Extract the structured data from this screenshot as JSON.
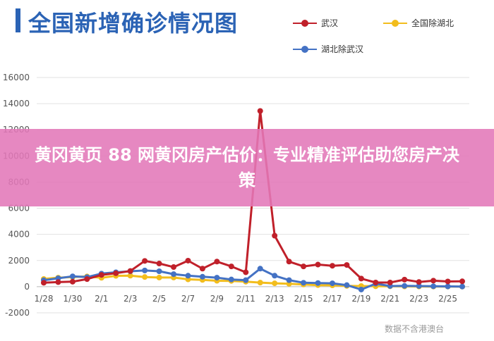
{
  "header": {
    "title": "全国新增确诊情况图"
  },
  "legend": [
    {
      "name": "武汉",
      "color": "#c0202a"
    },
    {
      "name": "全国除湖北",
      "color": "#f2bd1d"
    },
    {
      "name": "湖北除武汉",
      "color": "#4472c4"
    }
  ],
  "banner": {
    "text": "黄冈黄页 88 网黄冈房产估价：专业精准评估助您房产决策"
  },
  "source": "数据不含港澳台",
  "chart_data": {
    "type": "line",
    "title": "全国新增确诊情况图",
    "xlabel": "",
    "ylabel": "",
    "ylim": [
      -2000,
      16000
    ],
    "yticks": [
      -2000,
      0,
      2000,
      4000,
      6000,
      8000,
      10000,
      12000,
      14000,
      16000
    ],
    "x": [
      "1/28",
      "1/29",
      "1/30",
      "1/31",
      "2/1",
      "2/2",
      "2/3",
      "2/4",
      "2/5",
      "2/6",
      "2/7",
      "2/8",
      "2/9",
      "2/10",
      "2/11",
      "2/12",
      "2/13",
      "2/14",
      "2/15",
      "2/16",
      "2/17",
      "2/18",
      "2/19",
      "2/20",
      "2/21",
      "2/22",
      "2/23",
      "2/24",
      "2/25",
      "2/26"
    ],
    "xtick_labels": [
      "1/28",
      "1/30",
      "2/1",
      "2/3",
      "2/5",
      "2/7",
      "2/9",
      "2/11",
      "2/13",
      "2/15",
      "2/17",
      "2/19",
      "2/21",
      "2/23",
      "2/25"
    ],
    "grid": true,
    "legend_position": "top-right",
    "series": [
      {
        "name": "武汉",
        "color": "#c0202a",
        "values": [
          300,
          350,
          380,
          580,
          900,
          1030,
          1200,
          1970,
          1770,
          1500,
          1990,
          1380,
          1920,
          1550,
          1100,
          13440,
          3900,
          1920,
          1550,
          1690,
          1600,
          1660,
          620,
          320,
          320,
          540,
          360,
          460,
          400,
          410
        ]
      },
      {
        "name": "全国除湖北",
        "color": "#f2bd1d",
        "values": [
          590,
          690,
          740,
          780,
          680,
          830,
          840,
          740,
          700,
          700,
          560,
          520,
          450,
          440,
          380,
          310,
          260,
          220,
          170,
          120,
          100,
          60,
          50,
          30,
          30,
          20,
          15,
          10,
          10,
          5
        ]
      },
      {
        "name": "湖北除武汉",
        "color": "#4472c4",
        "values": [
          490,
          640,
          790,
          730,
          1000,
          1100,
          1180,
          1240,
          1180,
          960,
          840,
          760,
          690,
          550,
          500,
          1380,
          840,
          500,
          300,
          280,
          260,
          120,
          -220,
          230,
          50,
          60,
          50,
          30,
          20,
          10
        ]
      }
    ]
  }
}
